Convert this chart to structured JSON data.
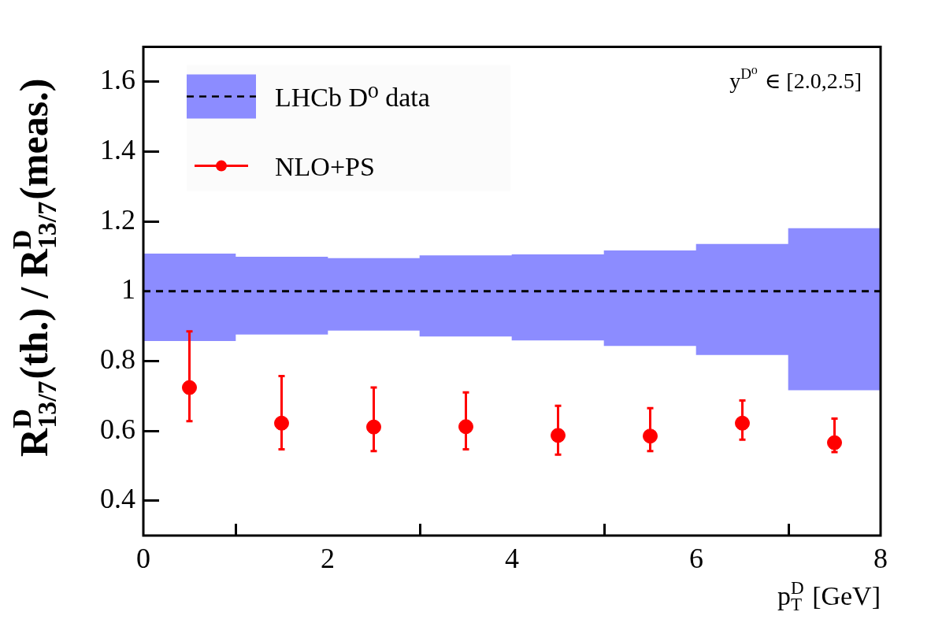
{
  "chart_data": {
    "type": "scatter",
    "xlabel": "p$^{D}$$_{T}$ [GeV]",
    "ylabel": "R$^{D}$$_{13/7}$(th.) / R$^{D}$$_{13/7}$(meas.)",
    "annotations": [
      "y$^{D⁰}$ ∈ [2.0,2.5]"
    ],
    "xlim": [
      0,
      8
    ],
    "ylim": [
      0.3,
      1.7
    ],
    "xticks": [
      0,
      2,
      4,
      6,
      8
    ],
    "yticks": [
      0.4,
      0.6,
      0.8,
      1,
      1.2,
      1.4,
      1.6
    ],
    "legend": "top left",
    "marker": "circle",
    "ref_lines": [
      {
        "axis": "y",
        "value": 1,
        "color": "#000000",
        "line_style": "dashed"
      }
    ],
    "series": [
      {
        "name": "LHCb D⁰ data",
        "type": "bar",
        "color": "#8c8cff",
        "x": [
          0.5,
          1.5,
          2.5,
          3.5,
          4.5,
          5.5,
          6.5,
          7.5
        ],
        "base": [
          0.858,
          0.877,
          0.888,
          0.871,
          0.86,
          0.844,
          0.818,
          0.717
        ],
        "values": [
          0.249,
          0.221,
          0.206,
          0.231,
          0.245,
          0.272,
          0.317,
          0.463
        ]
      },
      {
        "name": "NLO+PS",
        "color": "#ff0000",
        "x": [
          0.5,
          1.5,
          2.5,
          3.5,
          4.5,
          5.5,
          6.5,
          7.5
        ],
        "values": [
          0.724,
          0.622,
          0.611,
          0.612,
          0.587,
          0.585,
          0.622,
          0.566
        ],
        "errors": [
          [
            0.628,
            0.885
          ],
          [
            0.547,
            0.757
          ],
          [
            0.542,
            0.724
          ],
          [
            0.547,
            0.71
          ],
          [
            0.532,
            0.672
          ],
          [
            0.542,
            0.665
          ],
          [
            0.575,
            0.687
          ],
          [
            0.539,
            0.635
          ]
        ]
      }
    ]
  }
}
